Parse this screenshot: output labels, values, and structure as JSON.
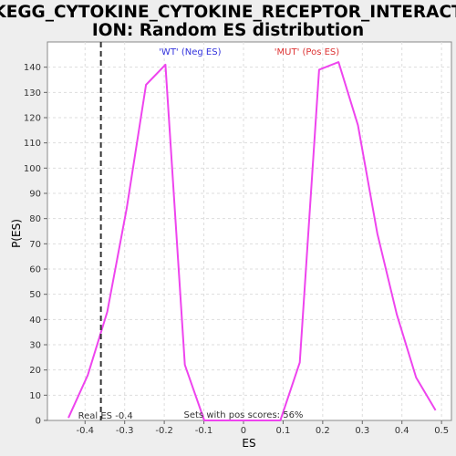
{
  "chart_data": {
    "type": "line",
    "title_line1": "KEGG_CYTOKINE_CYTOKINE_RECEPTOR_INTERACT",
    "title_line2": "ION: Random ES distribution",
    "xlabel": "ES",
    "ylabel": "P(ES)",
    "xlim": [
      -0.495,
      0.525
    ],
    "ylim": [
      0,
      150
    ],
    "x_ticks": [
      -0.4,
      -0.3,
      -0.2,
      -0.1,
      0.0,
      0.1,
      0.2,
      0.3,
      0.4,
      0.5
    ],
    "x_tick_labels": [
      "-0.4",
      "-0.3",
      "-0.2",
      "-0.1",
      "0",
      "0.1",
      "0.2",
      "0.3",
      "0.4",
      "0.5"
    ],
    "y_ticks": [
      0,
      10,
      20,
      30,
      40,
      50,
      60,
      70,
      80,
      90,
      100,
      110,
      120,
      130,
      140
    ],
    "y_tick_labels": [
      "0",
      "10",
      "20",
      "30",
      "40",
      "50",
      "60",
      "70",
      "80",
      "90",
      "100",
      "110",
      "120",
      "130",
      "140"
    ],
    "grid": true,
    "series": [
      {
        "color": "#ee44ee",
        "x": [
          -0.442,
          -0.393,
          -0.344,
          -0.295,
          -0.246,
          -0.197,
          -0.148,
          -0.099,
          0.0,
          0.093,
          0.142,
          0.191,
          0.24,
          0.289,
          0.338,
          0.387,
          0.436,
          0.485
        ],
        "y": [
          1,
          18,
          43,
          84,
          133,
          141,
          22,
          0,
          0,
          0,
          23,
          139,
          142,
          117,
          74,
          42,
          17,
          4
        ]
      }
    ],
    "real_es": -0.36,
    "real_es_label": "Real ES -0.4",
    "neg_label": "'WT' (Neg ES)",
    "neg_color": "#3333dd",
    "pos_label": "'MUT' (Pos ES)",
    "pos_color": "#dd3333",
    "pos_scores_label": "Sets with pos scores: 56%"
  }
}
